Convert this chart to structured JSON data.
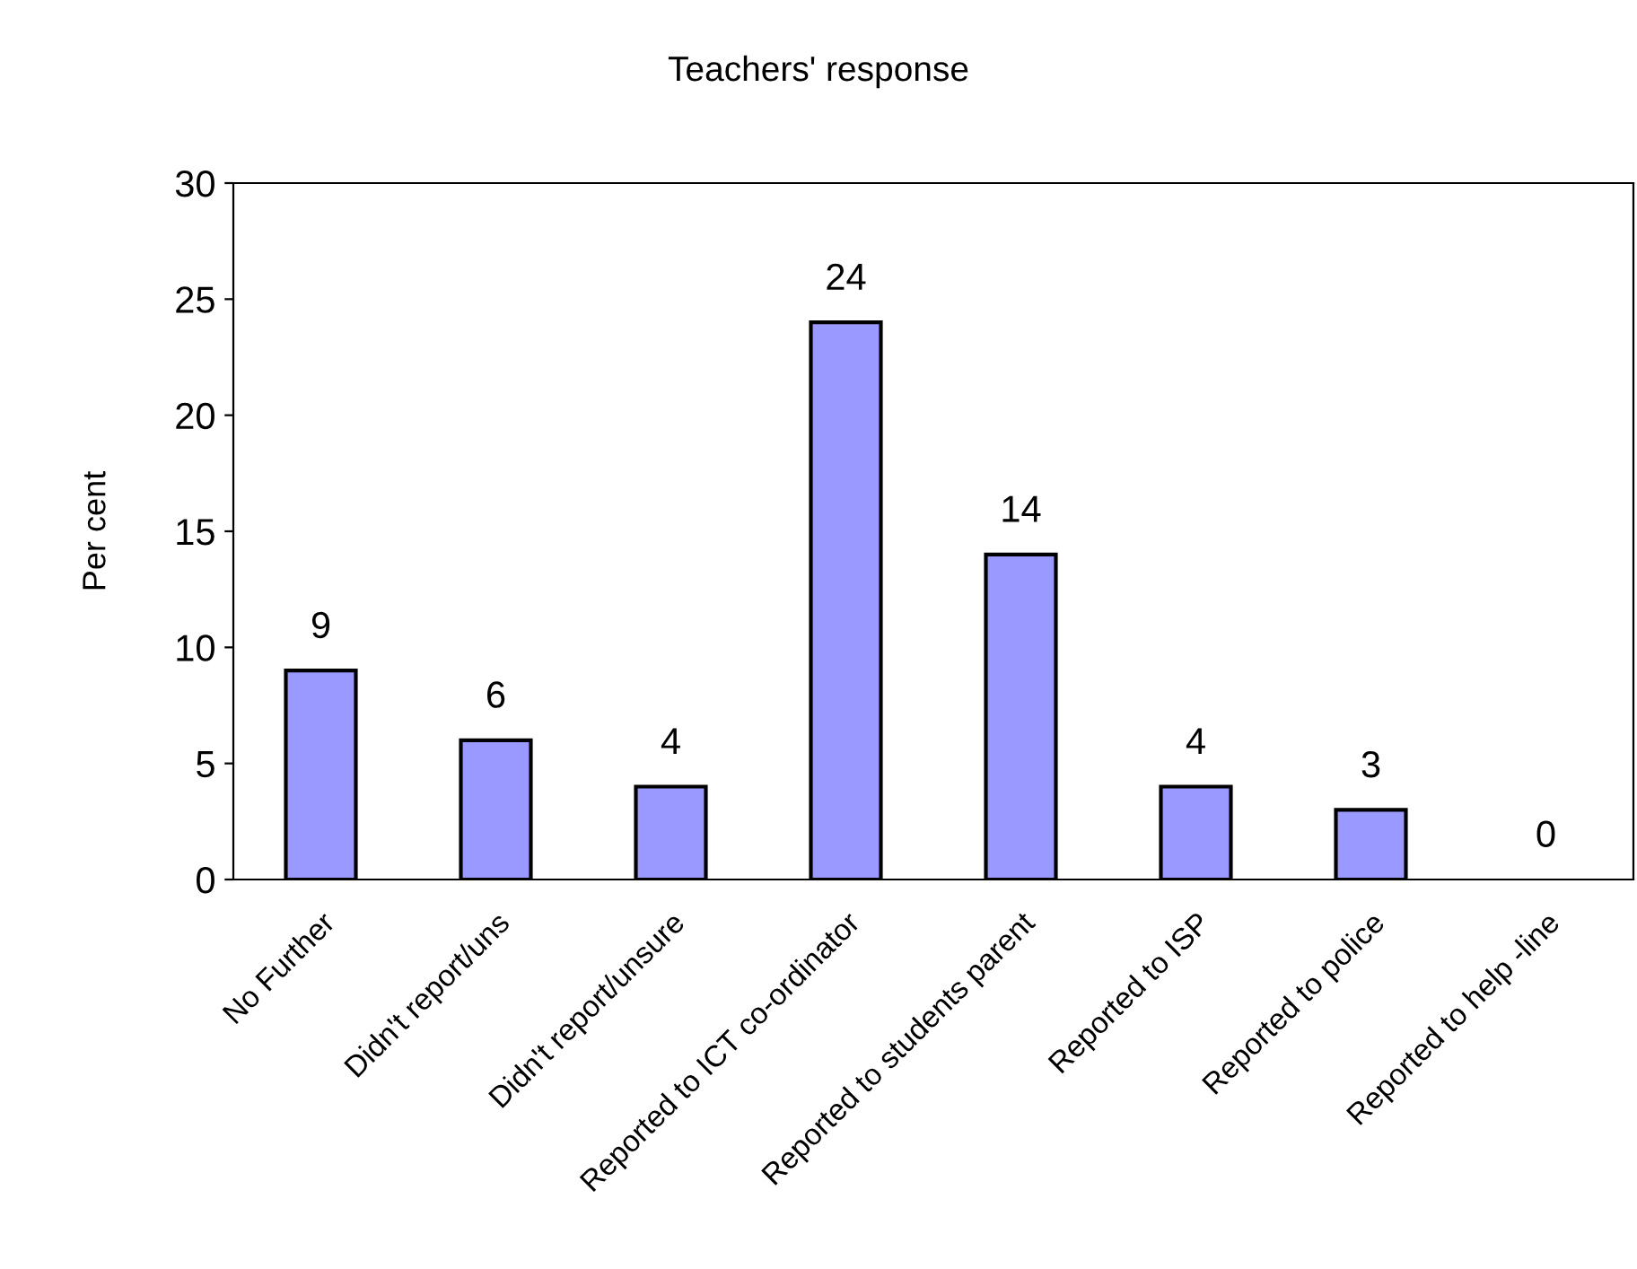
{
  "chart_data": {
    "type": "bar",
    "title": "Teachers' response",
    "ylabel": "Per cent",
    "categories": [
      "No Further",
      "Didn't report/uns",
      "Didn't report/unsure",
      "Reported to ICT co-ordinator",
      "Reported to students parent",
      "Reported to ISP",
      "Reported to police",
      "Reported to help -line"
    ],
    "values": [
      9,
      6,
      4,
      24,
      14,
      4,
      3,
      0
    ],
    "color": "#9999ff",
    "ylim": [
      0,
      30
    ],
    "yticks": [
      0,
      5,
      10,
      15,
      20,
      25,
      30
    ],
    "grid": false,
    "data_labels": true
  }
}
